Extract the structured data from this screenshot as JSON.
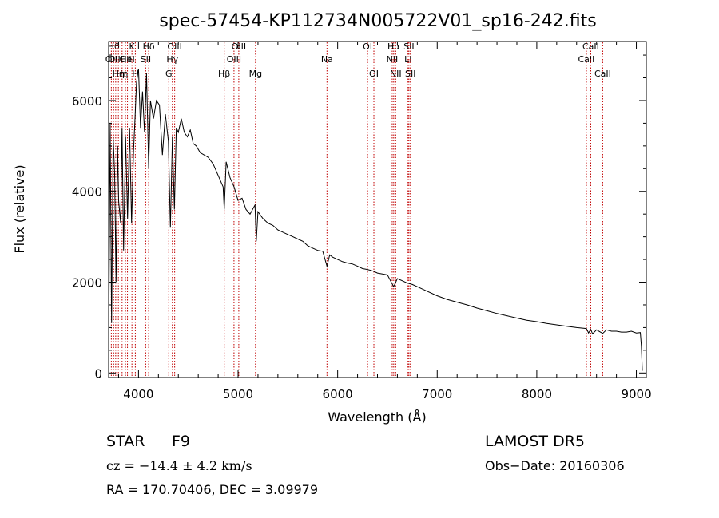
{
  "chart_data": {
    "type": "line",
    "title": "spec-57454-KP112734N005722V01_sp16-242.fits",
    "xlabel": "Wavelength (Å)",
    "ylabel": "Flux (relative)",
    "xlim": [
      3700,
      9100
    ],
    "ylim": [
      -100,
      7300
    ],
    "x_ticks": [
      4000,
      5000,
      6000,
      7000,
      8000,
      9000
    ],
    "y_ticks": [
      0,
      2000,
      4000,
      6000
    ],
    "grid": false,
    "line_color": "#000000",
    "marker_color": "#c00000",
    "series": [
      {
        "x": [
          3700,
          3705,
          3715,
          3730,
          3745,
          3760,
          3775,
          3790,
          3800,
          3820,
          3835,
          3850,
          3870,
          3890,
          3910,
          3930,
          3950,
          3965,
          3980,
          4000,
          4020,
          4040,
          4060,
          4080,
          4102,
          4120,
          4150,
          4180,
          4210,
          4240,
          4270,
          4300,
          4320,
          4340,
          4360,
          4380,
          4400,
          4430,
          4460,
          4490,
          4520,
          4550,
          4580,
          4620,
          4660,
          4700,
          4750,
          4800,
          4850,
          4861,
          4880,
          4920,
          4960,
          5000,
          5040,
          5080,
          5120,
          5170,
          5183,
          5200,
          5250,
          5300,
          5350,
          5400,
          5450,
          5500,
          5550,
          5600,
          5650,
          5700,
          5750,
          5800,
          5850,
          5893,
          5920,
          5950,
          6000,
          6050,
          6100,
          6150,
          6200,
          6250,
          6300,
          6350,
          6400,
          6450,
          6500,
          6563,
          6600,
          6650,
          6700,
          6750,
          6800,
          6900,
          7000,
          7100,
          7200,
          7300,
          7400,
          7500,
          7600,
          7700,
          7800,
          7900,
          8000,
          8100,
          8200,
          8300,
          8400,
          8498,
          8520,
          8542,
          8560,
          8600,
          8662,
          8700,
          8750,
          8800,
          8850,
          8900,
          8950,
          9000,
          9040,
          9050,
          9060
        ],
        "y": [
          300,
          2000,
          5500,
          1100,
          5200,
          4400,
          2000,
          5000,
          3800,
          3300,
          5400,
          2700,
          5200,
          3400,
          5400,
          3300,
          4900,
          5600,
          6400,
          6700,
          5400,
          6200,
          5300,
          6600,
          4500,
          6000,
          5600,
          6000,
          5900,
          4800,
          5700,
          5100,
          3200,
          5200,
          3600,
          5400,
          5300,
          5600,
          5300,
          5200,
          5350,
          5050,
          5000,
          4850,
          4800,
          4750,
          4600,
          4350,
          4100,
          3600,
          4650,
          4300,
          4100,
          3800,
          3850,
          3600,
          3500,
          3700,
          2900,
          3550,
          3400,
          3300,
          3250,
          3150,
          3100,
          3050,
          3000,
          2950,
          2900,
          2800,
          2750,
          2700,
          2680,
          2350,
          2600,
          2550,
          2500,
          2450,
          2420,
          2400,
          2350,
          2300,
          2280,
          2250,
          2200,
          2180,
          2160,
          1900,
          2080,
          2030,
          1980,
          1950,
          1900,
          1800,
          1700,
          1620,
          1560,
          1500,
          1430,
          1370,
          1310,
          1260,
          1210,
          1160,
          1130,
          1090,
          1060,
          1030,
          1000,
          980,
          880,
          960,
          860,
          950,
          870,
          950,
          920,
          920,
          900,
          900,
          920,
          880,
          890,
          600,
          50
        ]
      }
    ],
    "line_markers": [
      {
        "wave": 3727,
        "label": "OII",
        "row": 2
      },
      {
        "wave": 3750,
        "label": "Hθ",
        "row": 1
      },
      {
        "wave": 3771,
        "label": "OIII",
        "row": 2
      },
      {
        "wave": 3798,
        "label": "Hη",
        "row": 3
      },
      {
        "wave": 3835,
        "label": "Hη",
        "row": 3
      },
      {
        "wave": 3869,
        "label": "OII",
        "row": 2
      },
      {
        "wave": 3889,
        "label": "HeI",
        "row": 2
      },
      {
        "wave": 3934,
        "label": "K",
        "row": 1
      },
      {
        "wave": 3968,
        "label": "H",
        "row": 3
      },
      {
        "wave": 4072,
        "label": "SII",
        "row": 2
      },
      {
        "wave": 4102,
        "label": "Hδ",
        "row": 1
      },
      {
        "wave": 4304,
        "label": "G",
        "row": 3
      },
      {
        "wave": 4340,
        "label": "Hγ",
        "row": 2
      },
      {
        "wave": 4363,
        "label": "OIII",
        "row": 1
      },
      {
        "wave": 4861,
        "label": "Hβ",
        "row": 3
      },
      {
        "wave": 4959,
        "label": "OIII",
        "row": 2
      },
      {
        "wave": 5007,
        "label": "OIII",
        "row": 1
      },
      {
        "wave": 5175,
        "label": "Mg",
        "row": 3
      },
      {
        "wave": 5893,
        "label": "Na",
        "row": 2
      },
      {
        "wave": 6300,
        "label": "OI",
        "row": 1
      },
      {
        "wave": 6364,
        "label": "OI",
        "row": 3
      },
      {
        "wave": 6548,
        "label": "NII",
        "row": 2
      },
      {
        "wave": 6563,
        "label": "Hα",
        "row": 1
      },
      {
        "wave": 6583,
        "label": "NII",
        "row": 3
      },
      {
        "wave": 6707,
        "label": "Li",
        "row": 2
      },
      {
        "wave": 6716,
        "label": "SII",
        "row": 1
      },
      {
        "wave": 6731,
        "label": "SII",
        "row": 3
      },
      {
        "wave": 8498,
        "label": "CaII",
        "row": 2
      },
      {
        "wave": 8542,
        "label": "CaII",
        "row": 1
      },
      {
        "wave": 8662,
        "label": "CaII",
        "row": 3
      }
    ]
  },
  "info": {
    "class": "STAR",
    "subclass": "F9",
    "survey": "LAMOST  DR5",
    "redshift": "cz = −14.4 ± 4.2 km/s",
    "obs_date": "Obs−Date: 20160306",
    "coords": "RA = 170.70406, DEC =    3.09979"
  }
}
